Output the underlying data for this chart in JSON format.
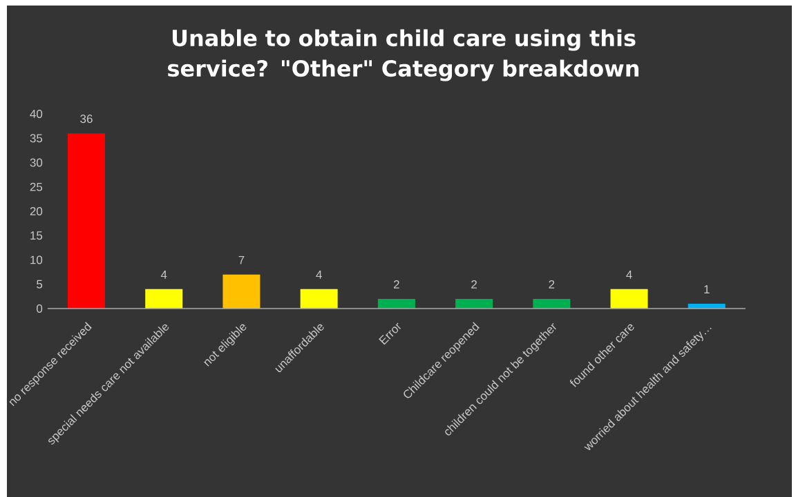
{
  "chart_data": {
    "type": "bar",
    "title": "Unable to obtain child care using this service? \"Other\" Category breakdown",
    "categories": [
      "no response received",
      "special needs care not available",
      "not eligible",
      "unaffordable",
      "Error",
      "Childcare reopened",
      "children could not be together",
      "found other care",
      "worried about health and safety…"
    ],
    "values": [
      36,
      4,
      7,
      4,
      2,
      2,
      2,
      4,
      1
    ],
    "colors": [
      "#ff0000",
      "#ffff00",
      "#ffc000",
      "#ffff00",
      "#00b050",
      "#00b050",
      "#00b050",
      "#ffff00",
      "#00b0f0"
    ],
    "ylim": [
      0,
      40
    ],
    "yticks": [
      0,
      5,
      10,
      15,
      20,
      25,
      30,
      35,
      40
    ],
    "data_labels": true
  }
}
